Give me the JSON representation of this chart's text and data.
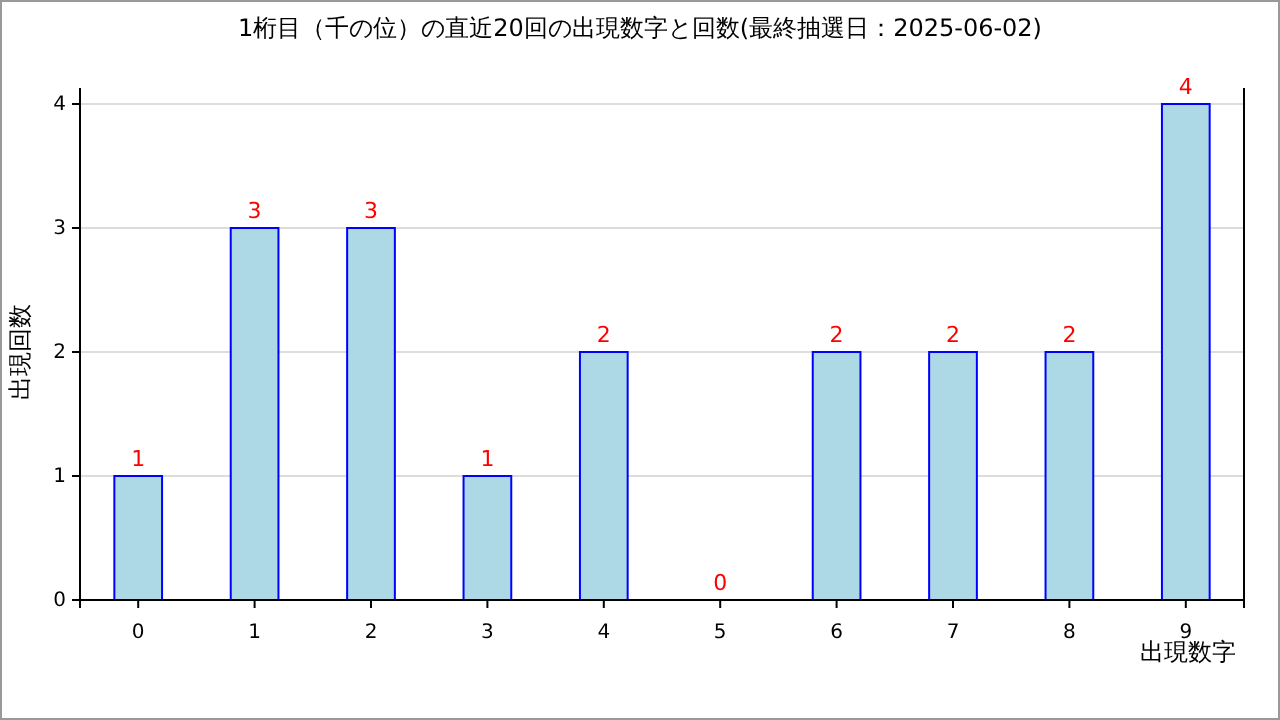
{
  "chart_data": {
    "type": "bar",
    "title": "1桁目（千の位）の直近20回の出現数字と回数(最終抽選日：2025-06-02)",
    "xlabel": "出現数字",
    "ylabel": "出現回数",
    "categories": [
      "0",
      "1",
      "2",
      "3",
      "4",
      "5",
      "6",
      "7",
      "8",
      "9"
    ],
    "series": [
      {
        "color": "#add8e6",
        "values": [
          1,
          3,
          3,
          1,
          2,
          0,
          2,
          2,
          2,
          4
        ]
      }
    ],
    "ylim": [
      0,
      4
    ],
    "yticks": [
      0,
      1,
      2,
      3,
      4
    ],
    "grid": "y",
    "data_labels": true
  }
}
